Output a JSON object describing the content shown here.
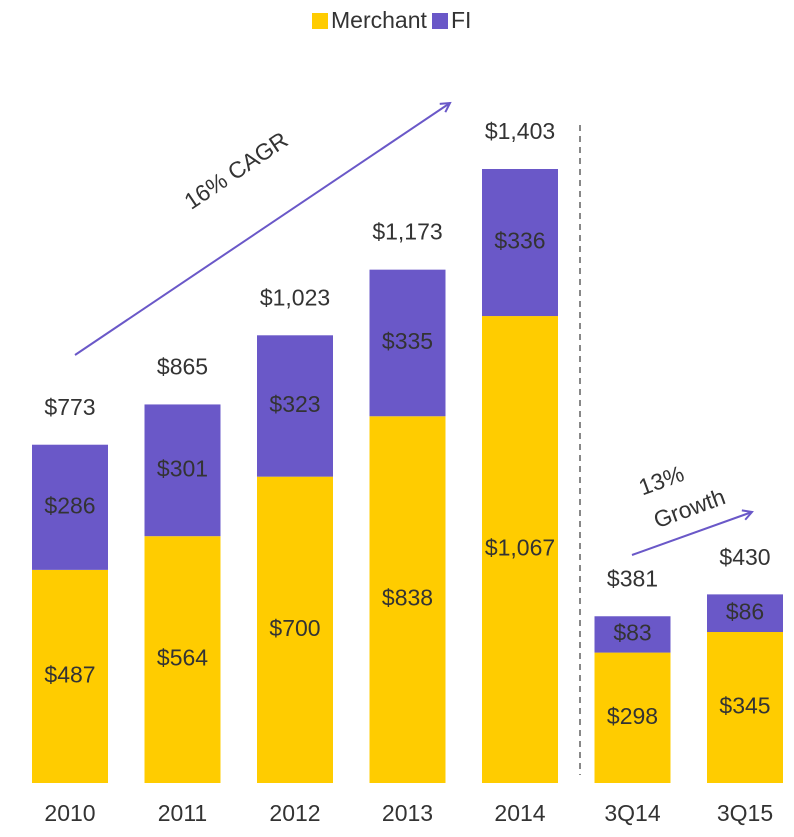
{
  "chart_data": {
    "type": "stacked_bar",
    "categories": [
      "2010",
      "2011",
      "2012",
      "2013",
      "2014",
      "3Q14",
      "3Q15"
    ],
    "series": [
      {
        "name": "Merchant",
        "color": "#ffcc00",
        "values": [
          487,
          564,
          700,
          838,
          1067,
          298,
          345
        ],
        "value_labels": [
          "$487",
          "$564",
          "$700",
          "$838",
          "$1,067",
          "$298",
          "$345"
        ]
      },
      {
        "name": "FI",
        "color": "#6a58c8",
        "values": [
          286,
          301,
          323,
          335,
          336,
          83,
          86
        ],
        "value_labels": [
          "$286",
          "$301",
          "$323",
          "$335",
          "$336",
          "$83",
          "$86"
        ]
      }
    ],
    "totals": [
      773,
      865,
      1023,
      1173,
      1403,
      381,
      430
    ],
    "total_labels": [
      "$773",
      "$865",
      "$1,023",
      "$1,173",
      "$1,403",
      "$381",
      "$430"
    ],
    "annotations": [
      "16% CAGR",
      "13%",
      "Growth"
    ],
    "legend": "top"
  }
}
